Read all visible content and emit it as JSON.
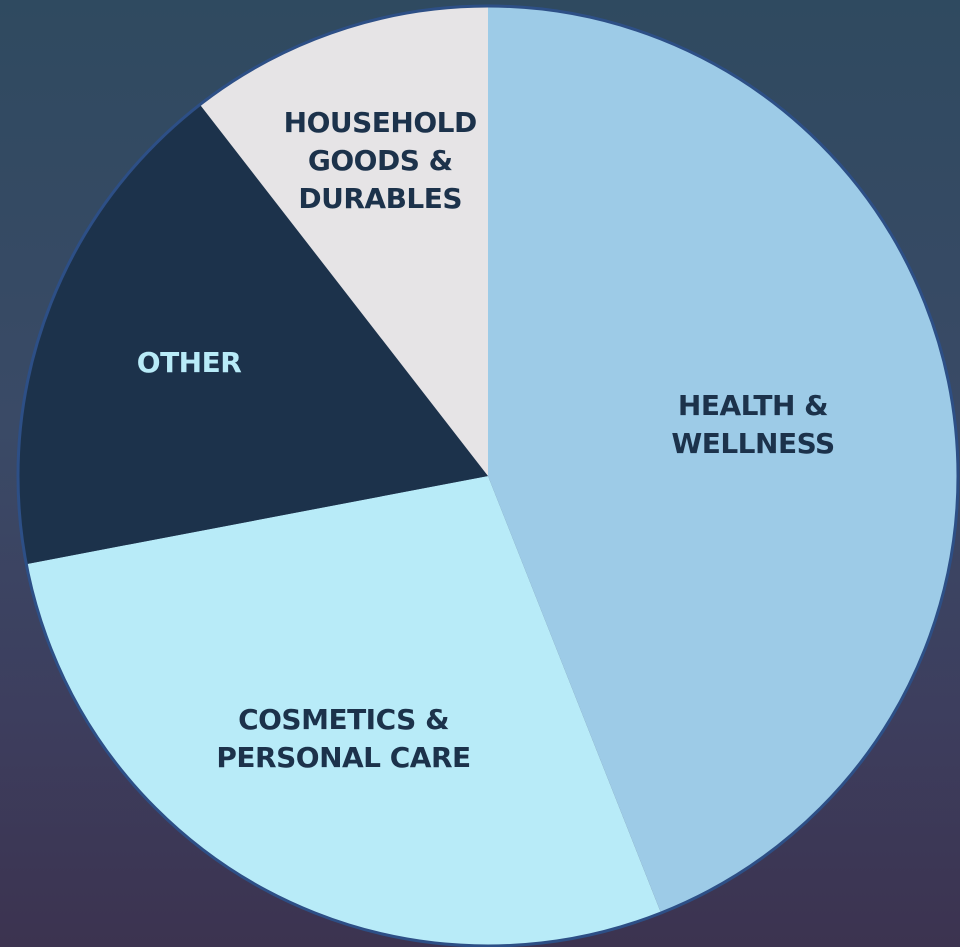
{
  "chart_data": {
    "type": "pie",
    "categories": [
      "HEALTH & WELLNESS",
      "COSMETICS & PERSONAL CARE",
      "OTHER",
      "HOUSEHOLD GOODS & DURABLES"
    ],
    "values": [
      44,
      28,
      17.5,
      10.5
    ],
    "colors": [
      "#9dcbe7",
      "#b8ebf8",
      "#1c324b",
      "#e6e4e6"
    ]
  }
}
